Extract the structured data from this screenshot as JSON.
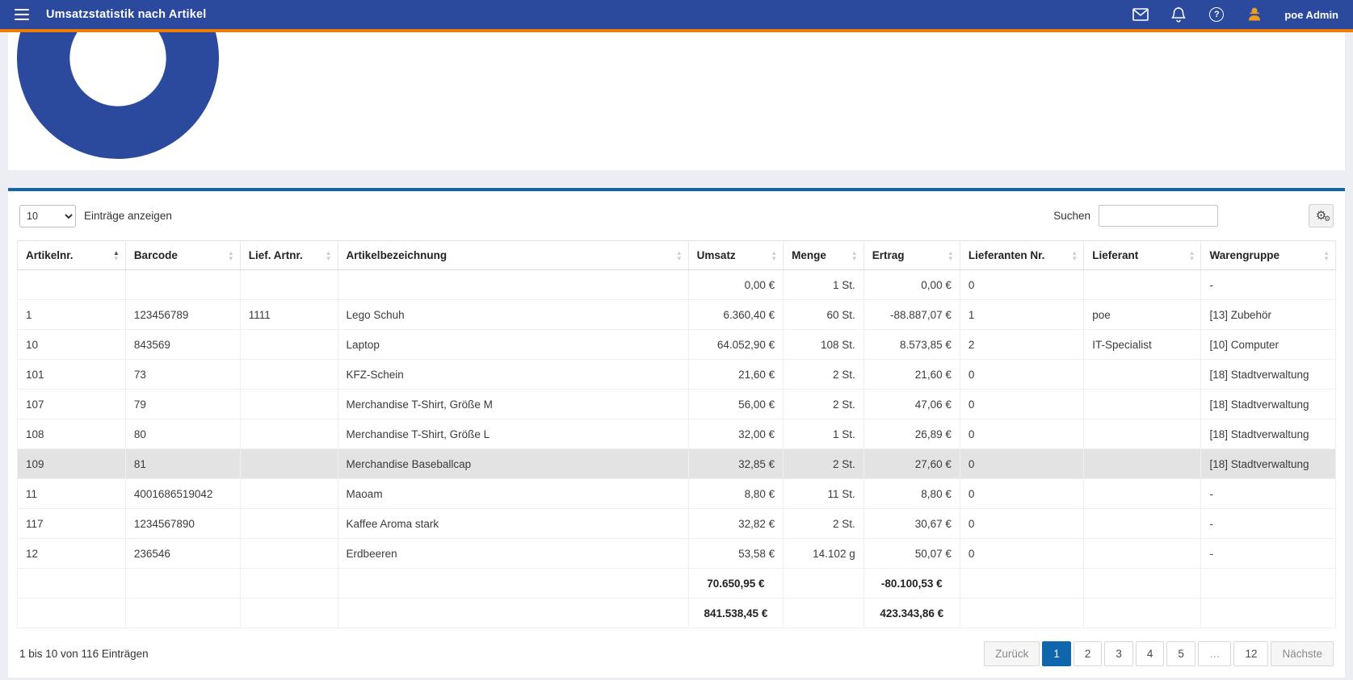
{
  "colors": {
    "header_bg": "#2b4a9e",
    "accent_orange": "#ee7d00",
    "panel_top_border": "#1066ad",
    "active_page": "#1066ad",
    "highlight_row": "#e3e3e3",
    "user_icon": "#f09e1b",
    "donut": "#2b4a9e"
  },
  "header": {
    "title": "Umsatzstatistik nach Artikel",
    "user_name": "poe Admin"
  },
  "chart_data": {
    "type": "pie",
    "title": "",
    "series": [
      {
        "label": "",
        "value": 100
      }
    ],
    "colors": [
      "#2b4a9e"
    ],
    "legend": "none",
    "note": "solid single-color donut ring, top part clipped by panel edge"
  },
  "toolbar": {
    "length_value": "10",
    "length_label": "Einträge anzeigen",
    "search_label": "Suchen",
    "search_value": ""
  },
  "table": {
    "columns": [
      {
        "label": "Artikelnr.",
        "sort": "asc"
      },
      {
        "label": "Barcode",
        "sort": "none"
      },
      {
        "label": "Lief. Artnr.",
        "sort": "none"
      },
      {
        "label": "Artikelbezeichnung",
        "sort": "none"
      },
      {
        "label": "Umsatz",
        "sort": "none"
      },
      {
        "label": "Menge",
        "sort": "none"
      },
      {
        "label": "Ertrag",
        "sort": "none"
      },
      {
        "label": "Lieferanten Nr.",
        "sort": "none"
      },
      {
        "label": "Lieferant",
        "sort": "none"
      },
      {
        "label": "Warengruppe",
        "sort": "none"
      }
    ],
    "numeric_columns": [
      4,
      5,
      6
    ],
    "highlighted_row": 6,
    "rows": [
      [
        "",
        "",
        "",
        "",
        "0,00 €",
        "1 St.",
        "0,00 €",
        "0",
        "",
        "-"
      ],
      [
        "1",
        "123456789",
        "1111",
        "Lego Schuh",
        "6.360,40 €",
        "60 St.",
        "-88.887,07 €",
        "1",
        "poe",
        "[13] Zubehör"
      ],
      [
        "10",
        "843569",
        "",
        "Laptop",
        "64.052,90 €",
        "108 St.",
        "8.573,85 €",
        "2",
        "IT-Specialist",
        "[10] Computer"
      ],
      [
        "101",
        "73",
        "",
        "KFZ-Schein",
        "21,60 €",
        "2 St.",
        "21,60 €",
        "0",
        "",
        "[18] Stadtverwaltung"
      ],
      [
        "107",
        "79",
        "",
        "Merchandise T-Shirt, Größe M",
        "56,00 €",
        "2 St.",
        "47,06 €",
        "0",
        "",
        "[18] Stadtverwaltung"
      ],
      [
        "108",
        "80",
        "",
        "Merchandise T-Shirt, Größe L",
        "32,00 €",
        "1 St.",
        "26,89 €",
        "0",
        "",
        "[18] Stadtverwaltung"
      ],
      [
        "109",
        "81",
        "",
        "Merchandise Baseballcap",
        "32,85 €",
        "2 St.",
        "27,60 €",
        "0",
        "",
        "[18] Stadtverwaltung"
      ],
      [
        "11",
        "4001686519042",
        "",
        "Maoam",
        "8,80 €",
        "11 St.",
        "8,80 €",
        "0",
        "",
        "-"
      ],
      [
        "117",
        "1234567890",
        "",
        "Kaffee Aroma stark",
        "32,82 €",
        "2 St.",
        "30,67 €",
        "0",
        "",
        "-"
      ],
      [
        "12",
        "236546",
        "",
        "Erdbeeren",
        "53,58 €",
        "14.102 g",
        "50,07 €",
        "0",
        "",
        "-"
      ]
    ],
    "footer_rows": [
      [
        "",
        "",
        "",
        "",
        "70.650,95 €",
        "",
        "-80.100,53 €",
        "",
        "",
        ""
      ],
      [
        "",
        "",
        "",
        "",
        "841.538,45 €",
        "",
        "423.343,86 €",
        "",
        "",
        ""
      ]
    ]
  },
  "footer_bar": {
    "info": "1 bis 10 von 116 Einträgen",
    "pagination": {
      "prev": "Zurück",
      "pages": [
        "1",
        "2",
        "3",
        "4",
        "5",
        "…",
        "12"
      ],
      "active_page": "1",
      "next": "Nächste"
    }
  }
}
